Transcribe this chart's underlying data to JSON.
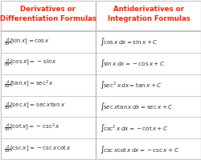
{
  "title_left": "Derivatives or\nDifferentiation Formulas",
  "title_right": "Antiderivatives or\nIntegration Formulas",
  "title_color": "#FF2200",
  "header_bg": "#FFFFFF",
  "row_bg": "#FFFFFF",
  "border_color": "#BBBBBB",
  "text_color": "#333333",
  "left_rows": [
    "$\\frac{d}{dx}[\\sin x] = \\cos x$",
    "$\\frac{d}{dx}[\\cos x] = -\\sin x$",
    "$\\frac{d}{dx}[\\tan x] = \\sec^2 x$",
    "$\\frac{d}{dx}[\\sec x] = \\sec x\\tan x$",
    "$\\frac{d}{dx}[\\cot x] = -\\csc^2 x$",
    "$\\frac{d}{dx}[\\csc x] = -\\csc x\\cot x$"
  ],
  "right_rows": [
    "$\\int \\!\\cos x\\,dx = \\sin x + C$",
    "$\\int \\!\\sin x\\,dx = -\\cos x + C$",
    "$\\int \\!\\sec^2 x\\,dx = \\tan x + C$",
    "$\\int \\!\\sec x\\tan x\\,dx = \\sec x + C$",
    "$\\int \\!\\csc^2 x\\,dx = -\\cot x + C$",
    "$\\int \\!\\csc x\\cot x\\,dx = -\\csc x + C$"
  ],
  "figsize": [
    2.51,
    2.0
  ],
  "dpi": 100
}
